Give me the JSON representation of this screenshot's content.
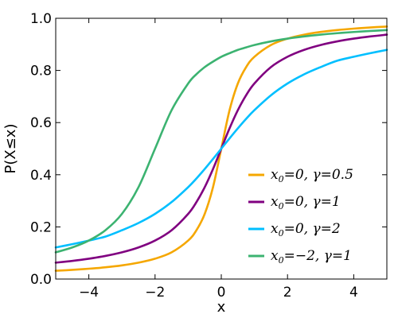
{
  "chart_data": {
    "type": "line",
    "title": "",
    "xlabel": "x",
    "ylabel": "P(X≤x)",
    "xlim": [
      -5,
      5
    ],
    "ylim": [
      0,
      1
    ],
    "grid": false,
    "legend_position": "bottom-right",
    "x_ticks": [
      -4,
      -2,
      0,
      2,
      4
    ],
    "x_tick_labels": [
      "−4",
      "−2",
      "0",
      "2",
      "4"
    ],
    "y_ticks": [
      0.0,
      0.2,
      0.4,
      0.6,
      0.8,
      1.0
    ],
    "y_tick_labels": [
      "0.0",
      "0.2",
      "0.4",
      "0.6",
      "0.8",
      "1.0"
    ],
    "x": [
      -5,
      -4.5,
      -4,
      -3.5,
      -3,
      -2.5,
      -2,
      -1.5,
      -1,
      -0.75,
      -0.5,
      -0.25,
      0,
      0.25,
      0.5,
      0.75,
      1,
      1.5,
      2,
      2.5,
      3,
      3.5,
      4,
      4.5,
      5
    ],
    "series": [
      {
        "legend": {
          "sym": "x",
          "sub": "0",
          "rel": "=0, ",
          "param": "γ=0.5"
        },
        "color": "#f5a700",
        "values": [
          0.0317,
          0.0352,
          0.0396,
          0.0451,
          0.0525,
          0.0628,
          0.078,
          0.1024,
          0.1476,
          0.1872,
          0.25,
          0.3524,
          0.5,
          0.6476,
          0.75,
          0.8128,
          0.8524,
          0.8976,
          0.922,
          0.9372,
          0.9475,
          0.9549,
          0.9604,
          0.9648,
          0.9683
        ]
      },
      {
        "legend": {
          "sym": "x",
          "sub": "0",
          "rel": "=0, ",
          "param": "γ=1"
        },
        "color": "#800080",
        "values": [
          0.0628,
          0.0696,
          0.078,
          0.0886,
          0.1024,
          0.1211,
          0.1476,
          0.1872,
          0.25,
          0.2952,
          0.3524,
          0.422,
          0.5,
          0.578,
          0.6476,
          0.7048,
          0.75,
          0.8128,
          0.8524,
          0.8789,
          0.8976,
          0.9114,
          0.922,
          0.9304,
          0.9372
        ]
      },
      {
        "legend": {
          "sym": "x",
          "sub": "0",
          "rel": "=0, ",
          "param": "γ=2"
        },
        "color": "#00bfff",
        "values": [
          0.1211,
          0.1338,
          0.1476,
          0.1628,
          0.1872,
          0.215,
          0.25,
          0.2952,
          0.3524,
          0.3856,
          0.422,
          0.4604,
          0.5,
          0.5396,
          0.578,
          0.6144,
          0.6476,
          0.7048,
          0.75,
          0.785,
          0.8128,
          0.8372,
          0.8524,
          0.8662,
          0.8789
        ]
      },
      {
        "legend": {
          "sym": "x",
          "sub": "0",
          "rel": "=−2, ",
          "param": "γ=1"
        },
        "color": "#3cb371",
        "values": [
          0.1024,
          0.1211,
          0.1476,
          0.1872,
          0.25,
          0.3524,
          0.5,
          0.6476,
          0.75,
          0.7857,
          0.8128,
          0.8339,
          0.8524,
          0.8662,
          0.8789,
          0.8883,
          0.8976,
          0.9114,
          0.922,
          0.9304,
          0.9372,
          0.9428,
          0.9474,
          0.9513,
          0.9548
        ]
      }
    ]
  }
}
